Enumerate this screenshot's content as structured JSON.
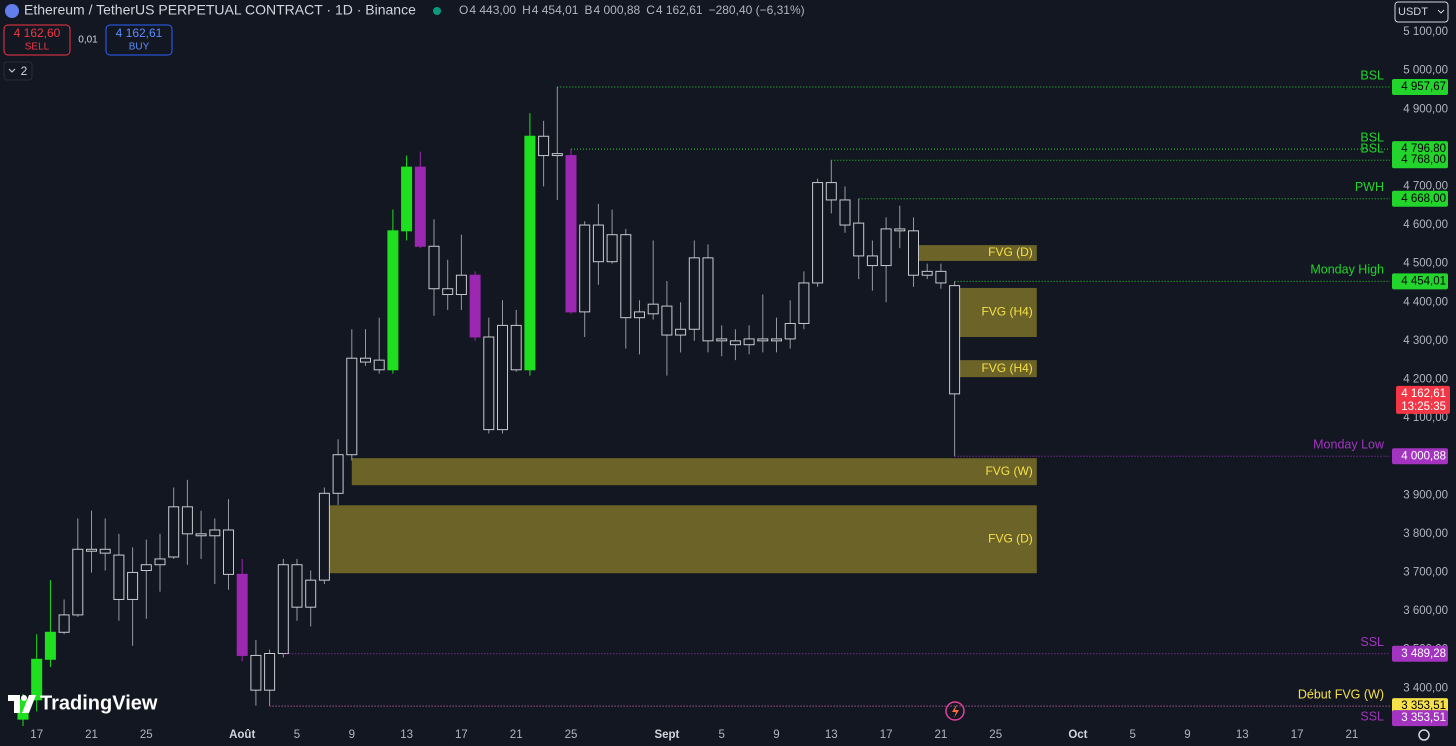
{
  "header": {
    "symbol": "Ethereum / TetherUS PERPETUAL CONTRACT · 1D · Binance",
    "ohlc": [
      {
        "key": "O",
        "text": "4 443,00"
      },
      {
        "key": "H",
        "text": "4 454,01"
      },
      {
        "key": "B",
        "text": "4 000,88"
      },
      {
        "key": "C",
        "text": "4 162,61"
      }
    ],
    "change": "−280,40 (−6,31%)"
  },
  "trade": {
    "sell_price": "4 162,60",
    "sell": "SELL",
    "spread": "0,01",
    "buy_price": "4 162,61",
    "buy": "BUY"
  },
  "indicators_toggle": "2",
  "currency": "USDT",
  "logo": "TradingView",
  "chart_data": {
    "type": "candlestick",
    "x": [
      "07-16",
      "07-17",
      "07-18",
      "07-19",
      "07-20",
      "07-21",
      "07-22",
      "07-23",
      "07-24",
      "07-25",
      "07-26",
      "07-27",
      "07-28",
      "07-29",
      "07-30",
      "07-31",
      "08-01",
      "08-02",
      "08-03",
      "08-04",
      "08-05",
      "08-06",
      "08-07",
      "08-08",
      "08-09",
      "08-10",
      "08-11",
      "08-12",
      "08-13",
      "08-14",
      "08-15",
      "08-16",
      "08-17",
      "08-18",
      "08-19",
      "08-20",
      "08-21",
      "08-22",
      "08-23",
      "08-24",
      "08-25",
      "08-26",
      "08-27",
      "08-28",
      "08-29",
      "08-30",
      "08-31",
      "09-01",
      "09-02",
      "09-03",
      "09-04",
      "09-05",
      "09-06",
      "09-07",
      "09-08",
      "09-09",
      "09-10",
      "09-11",
      "09-12",
      "09-13",
      "09-14",
      "09-15",
      "09-16",
      "09-17",
      "09-18",
      "09-19",
      "09-20",
      "09-21",
      "09-22"
    ],
    "open": [
      3320,
      3370,
      3475,
      3545,
      3590,
      3755,
      3760,
      3745,
      3630,
      3705,
      3720,
      3740,
      3870,
      3800,
      3795,
      3810,
      3695,
      3485,
      3395,
      3490,
      3720,
      3610,
      3680,
      3905,
      4005,
      4255,
      4250,
      4225,
      4585,
      4750,
      4545,
      4435,
      4420,
      4470,
      4310,
      4070,
      4340,
      4225,
      4830,
      4780,
      4780,
      4375,
      4600,
      4505,
      4575,
      4360,
      4370,
      4390,
      4315,
      4330,
      4515,
      4300,
      4300,
      4290,
      4305,
      4300,
      4305,
      4345,
      4450,
      4710,
      4665,
      4605,
      4520,
      4495,
      4590,
      4585,
      4470,
      4480,
      4443
    ],
    "high": [
      3385,
      3540,
      3680,
      3630,
      3840,
      3860,
      3840,
      3800,
      3765,
      3785,
      3800,
      3920,
      3940,
      3860,
      3840,
      3890,
      3735,
      3525,
      3500,
      3735,
      3735,
      3705,
      3920,
      4045,
      4330,
      4330,
      4360,
      4640,
      4780,
      4790,
      4615,
      4510,
      4575,
      4480,
      4360,
      4405,
      4380,
      4890,
      4870,
      4957.67,
      4796.8,
      4610,
      4655,
      4640,
      4590,
      4405,
      4560,
      4455,
      4400,
      4560,
      4550,
      4340,
      4330,
      4340,
      4420,
      4360,
      4405,
      4480,
      4720,
      4768,
      4700,
      4668,
      4560,
      4620,
      4650,
      4620,
      4500,
      4500,
      4454.01
    ],
    "low": [
      3290,
      3340,
      3455,
      3540,
      3585,
      3700,
      3705,
      3575,
      3510,
      3580,
      3650,
      3735,
      3720,
      3735,
      3670,
      3655,
      3470,
      3355,
      3354,
      3480,
      3575,
      3560,
      3670,
      3875,
      3990,
      4235,
      4215,
      4215,
      4560,
      4540,
      4365,
      4380,
      4380,
      4300,
      4060,
      4060,
      4220,
      4210,
      4700,
      4665,
      4370,
      4310,
      4445,
      4500,
      4280,
      4265,
      4355,
      4210,
      4270,
      4300,
      4270,
      4260,
      4250,
      4265,
      4270,
      4270,
      4280,
      4330,
      4440,
      4630,
      4580,
      4460,
      4430,
      4400,
      4540,
      4440,
      4460,
      4435,
      4000.88
    ],
    "close": [
      3370,
      3475,
      3545,
      3590,
      3760,
      3760,
      3750,
      3630,
      3700,
      3720,
      3735,
      3870,
      3800,
      3795,
      3810,
      3695,
      3485,
      3395,
      3490,
      3720,
      3610,
      3680,
      3905,
      4005,
      4255,
      4245,
      4225,
      4585,
      4750,
      4545,
      4435,
      4420,
      4470,
      4310,
      4070,
      4340,
      4225,
      4830,
      4780,
      4785,
      4375,
      4600,
      4505,
      4575,
      4360,
      4375,
      4395,
      4315,
      4330,
      4515,
      4300,
      4305,
      4290,
      4305,
      4300,
      4305,
      4345,
      4450,
      4710,
      4665,
      4600,
      4520,
      4495,
      4590,
      4585,
      4470,
      4480,
      4450,
      4162.61
    ],
    "colors": [
      "#1fe01f",
      "#1fe01f",
      "#1fe01f",
      "#d1d4dc",
      "#d1d4dc",
      "#d1d4dc",
      "#d1d4dc",
      "#d1d4dc",
      "#d1d4dc",
      "#d1d4dc",
      "#d1d4dc",
      "#d1d4dc",
      "#d1d4dc",
      "#d1d4dc",
      "#d1d4dc",
      "#d1d4dc",
      "#9c27b0",
      "#d1d4dc",
      "#d1d4dc",
      "#d1d4dc",
      "#d1d4dc",
      "#d1d4dc",
      "#d1d4dc",
      "#d1d4dc",
      "#d1d4dc",
      "#d1d4dc",
      "#d1d4dc",
      "#1fe01f",
      "#1fe01f",
      "#9c27b0",
      "#d1d4dc",
      "#d1d4dc",
      "#d1d4dc",
      "#9c27b0",
      "#d1d4dc",
      "#d1d4dc",
      "#d1d4dc",
      "#1fe01f",
      "#d1d4dc",
      "#d1d4dc",
      "#9c27b0",
      "#d1d4dc",
      "#d1d4dc",
      "#d1d4dc",
      "#d1d4dc",
      "#d1d4dc",
      "#d1d4dc",
      "#d1d4dc",
      "#d1d4dc",
      "#d1d4dc",
      "#d1d4dc",
      "#d1d4dc",
      "#d1d4dc",
      "#d1d4dc",
      "#d1d4dc",
      "#d1d4dc",
      "#d1d4dc",
      "#d1d4dc",
      "#d1d4dc",
      "#d1d4dc",
      "#d1d4dc",
      "#d1d4dc",
      "#d1d4dc",
      "#d1d4dc",
      "#d1d4dc",
      "#d1d4dc",
      "#d1d4dc",
      "#d1d4dc",
      "#d1d4dc"
    ],
    "hollow_color": "#d1d4dc",
    "ylim": [
      3297,
      5183
    ],
    "yticks": [
      {
        "value": 3400,
        "label": "3 400,00"
      },
      {
        "value": 3500,
        "label": "3 500,00"
      },
      {
        "value": 3600,
        "label": "3 600,00"
      },
      {
        "value": 3700,
        "label": "3 700,00"
      },
      {
        "value": 3800,
        "label": "3 800,00"
      },
      {
        "value": 3900,
        "label": "3 900,00"
      },
      {
        "value": 4000,
        "label": "4 000,00"
      },
      {
        "value": 4100,
        "label": "4 100,00"
      },
      {
        "value": 4200,
        "label": "4 200,00"
      },
      {
        "value": 4300,
        "label": "4 300,00"
      },
      {
        "value": 4400,
        "label": "4 400,00"
      },
      {
        "value": 4500,
        "label": "4 500,00"
      },
      {
        "value": 4600,
        "label": "4 600,00"
      },
      {
        "value": 4700,
        "label": "4 700,00"
      },
      {
        "value": 4800,
        "label": "4 800,00"
      },
      {
        "value": 4900,
        "label": "4 900,00"
      },
      {
        "value": 5000,
        "label": "5 000,00"
      },
      {
        "value": 5100,
        "label": "5 100,00"
      }
    ],
    "xticks": [
      {
        "value": "07-17",
        "label": "17"
      },
      {
        "value": "07-21",
        "label": "21"
      },
      {
        "value": "07-25",
        "label": "25"
      },
      {
        "value": "08-01",
        "label": "Août"
      },
      {
        "value": "08-05",
        "label": "5"
      },
      {
        "value": "08-09",
        "label": "9"
      },
      {
        "value": "08-13",
        "label": "13"
      },
      {
        "value": "08-17",
        "label": "17"
      },
      {
        "value": "08-21",
        "label": "21"
      },
      {
        "value": "08-25",
        "label": "25"
      },
      {
        "value": "09-01",
        "label": "Sept"
      },
      {
        "value": "09-05",
        "label": "5"
      },
      {
        "value": "09-09",
        "label": "9"
      },
      {
        "value": "09-13",
        "label": "13"
      },
      {
        "value": "09-17",
        "label": "17"
      },
      {
        "value": "09-21",
        "label": "21"
      },
      {
        "value": "09-25",
        "label": "25"
      },
      {
        "value": "10-01",
        "label": "Oct"
      },
      {
        "value": "10-05",
        "label": "5"
      },
      {
        "value": "10-09",
        "label": "9"
      },
      {
        "value": "10-13",
        "label": "13"
      },
      {
        "value": "10-17",
        "label": "17"
      },
      {
        "value": "10-21",
        "label": "21"
      }
    ],
    "grid": false,
    "levels": [
      {
        "name": "BSL",
        "value": 4957.67,
        "value_label": "4 957,67",
        "from": "08-24",
        "color": "#22d42b",
        "text_color": "#000000"
      },
      {
        "name": "BSL",
        "value": 4796.8,
        "value_label": "4 796,80",
        "from": "08-25",
        "color": "#22d42b",
        "text_color": "#000000"
      },
      {
        "name": "BSL",
        "value": 4768,
        "value_label": "4 768,00",
        "from": "09-13",
        "color": "#22d42b",
        "text_color": "#000000"
      },
      {
        "name": "PWH",
        "value": 4668,
        "value_label": "4 668,00",
        "from": "09-15",
        "color": "#22d42b",
        "text_color": "#000000"
      },
      {
        "name": "Monday High",
        "value": 4454.01,
        "value_label": "4 454,01",
        "from": "09-22",
        "color": "#22d42b",
        "text_color": "#000000"
      },
      {
        "name": "Monday Low",
        "value": 4000.88,
        "value_label": "4 000,88",
        "from": "09-22",
        "color": "#a234c0",
        "text_color": "#ffffff"
      },
      {
        "name": "SSL",
        "value": 3489.28,
        "value_label": "3 489,28",
        "from": "08-04",
        "color": "#a234c0",
        "text_color": "#ffffff"
      },
      {
        "name": "Début FVG (W)",
        "value": 3353.51,
        "value_label": "3 353,51",
        "from": "08-03",
        "color": "#f5e04a",
        "text_color": "#000000"
      },
      {
        "name": "SSL",
        "value": 3353.51,
        "value_label": "3 353,51",
        "from": "08-03",
        "color": "#a234c0",
        "text_color": "#ffffff"
      }
    ],
    "zones": [
      {
        "name": "FVG (D)",
        "low": 4507,
        "high": 4548,
        "from": "09-19",
        "to": "09-28"
      },
      {
        "name": "FVG (H4)",
        "low": 4310,
        "high": 4437,
        "from": "09-22",
        "to": "09-28"
      },
      {
        "name": "FVG (H4)",
        "low": 4206,
        "high": 4250,
        "from": "09-22",
        "to": "09-28"
      },
      {
        "name": "FVG (W)",
        "low": 3926,
        "high": 3996,
        "from": "08-09",
        "to": "09-28"
      },
      {
        "name": "FVG (D)",
        "low": 3698,
        "high": 3874,
        "from": "08-07",
        "to": "09-28"
      }
    ],
    "zone_color": "#8a7d2a",
    "zone_text_color": "#f5e04a",
    "last_price": {
      "value": 4162.61,
      "label": "4 162,61",
      "countdown": "13:25:35",
      "color": "#f23645"
    }
  }
}
